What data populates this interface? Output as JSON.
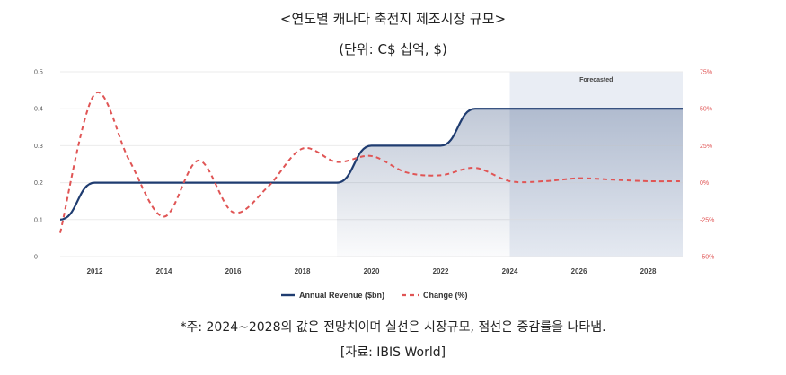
{
  "header": {
    "title": "<연도별 캐나다 축전지 제조시장 규모>",
    "unit": "(단위: C$ 십억, $)"
  },
  "footer": {
    "note": "*주: 2024~2028의 값은 전망치이며 실선은 시장규모, 점선은 증감률을 나타냄.",
    "source": "[자료: IBIS World]"
  },
  "chart_data": {
    "type": "line",
    "forecast_label": "Forecasted",
    "forecast_start": 2024,
    "xlim": [
      2011,
      2029
    ],
    "x_ticks": [
      "2012",
      "2014",
      "2016",
      "2018",
      "2020",
      "2022",
      "2024",
      "2026",
      "2028"
    ],
    "y_left": {
      "lim": [
        0,
        0.5
      ],
      "ticks": [
        "0",
        "0.1",
        "0.2",
        "0.3",
        "0.4",
        "0.5"
      ]
    },
    "y_right": {
      "lim": [
        -50,
        75
      ],
      "ticks": [
        "-50%",
        "-25%",
        "0%",
        "25%",
        "50%",
        "75%"
      ]
    },
    "legend_position": "bottom",
    "series": [
      {
        "name": "Annual Revenue ($bn)",
        "axis": "left",
        "color": "#1f3c70",
        "style": "solid",
        "x": [
          2011,
          2012,
          2013,
          2014,
          2015,
          2016,
          2017,
          2018,
          2019,
          2020,
          2021,
          2022,
          2023,
          2024,
          2025,
          2026,
          2027,
          2028,
          2029
        ],
        "values": [
          0.1,
          0.2,
          0.2,
          0.2,
          0.2,
          0.2,
          0.2,
          0.2,
          0.2,
          0.3,
          0.3,
          0.3,
          0.4,
          0.4,
          0.4,
          0.4,
          0.4,
          0.4,
          0.4
        ]
      },
      {
        "name": "Change (%)",
        "axis": "right",
        "color": "#e05555",
        "style": "dashed",
        "x": [
          2011,
          2012,
          2013,
          2014,
          2015,
          2016,
          2017,
          2018,
          2019,
          2020,
          2021,
          2022,
          2023,
          2024,
          2025,
          2026,
          2027,
          2028,
          2029
        ],
        "values": [
          -34,
          60,
          15,
          -23,
          15,
          -20,
          -3,
          23,
          14,
          18,
          7,
          5,
          10,
          1,
          1,
          3,
          2,
          1,
          1
        ]
      }
    ]
  }
}
